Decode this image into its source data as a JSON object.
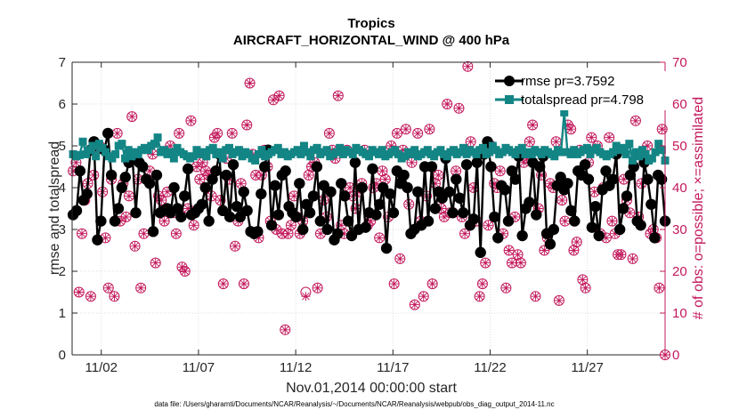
{
  "chart_data": {
    "type": "line",
    "title": "Tropics",
    "subtitle": "AIRCRAFT_HORIZONTAL_WIND @ 400 hPa",
    "xlabel": "Nov.01,2014 00:00:00 start",
    "ylabel": "rmse and totalspread",
    "y2label": "# of obs: o=possible; ×=assimilated",
    "footnote": "data file: /Users/gharamti/Documents/NCAR/Reanalysis/~/Documents/NCAR/Reanalysis/webpub/obs_diag_output_2014-11.nc",
    "xlim": [
      0.5,
      31.0
    ],
    "ylim": [
      0,
      7
    ],
    "y2lim": [
      0,
      70
    ],
    "xticks": [
      {
        "value": 2,
        "label": "11/02"
      },
      {
        "value": 7,
        "label": "11/07"
      },
      {
        "value": 12,
        "label": "11/12"
      },
      {
        "value": 17,
        "label": "11/17"
      },
      {
        "value": 22,
        "label": "11/22"
      },
      {
        "value": 27,
        "label": "11/27"
      }
    ],
    "yticks": [
      "0",
      "1",
      "2",
      "3",
      "4",
      "5",
      "6",
      "7"
    ],
    "y2ticks": [
      "0",
      "10",
      "20",
      "30",
      "40",
      "50",
      "60",
      "70"
    ],
    "legend_position": "top-right",
    "colors": {
      "rmse": "#000000",
      "spread": "#138585",
      "obs": "#c2185b"
    },
    "series": [
      {
        "name": "rmse",
        "legend": "rmse pr=3.7592",
        "values": [
          3.35,
          3.45,
          4.4,
          3.7,
          3.85,
          4.9,
          5.1,
          2.75,
          3.2,
          4.9,
          5.3,
          4.3,
          3.2,
          3.5,
          4.0,
          4.25,
          4.6,
          4.8,
          3.4,
          4.6,
          4.5,
          4.2,
          4.1,
          2.95,
          4.3,
          3.4,
          3.45,
          3.5,
          3.4,
          4.0,
          3.5,
          3.3,
          3.8,
          4.45,
          3.35,
          3.4,
          3.5,
          3.6,
          4.0,
          3.2,
          4.2,
          4.4,
          4.8,
          3.45,
          4.3,
          3.3,
          4.55,
          3.55,
          3.3,
          3.9,
          3.45,
          2.95,
          2.9,
          2.95,
          3.85,
          4.5,
          4.9,
          3.1,
          4.05,
          3.35,
          4.3,
          4.4,
          3.55,
          3.4,
          3.3,
          4.1,
          3.0,
          3.6,
          3.4,
          3.8,
          4.5,
          3.2,
          4.05,
          3.0,
          3.9,
          2.75,
          2.9,
          4.1,
          3.8,
          3.2,
          2.85,
          4.6,
          3.0,
          4.0,
          3.05,
          3.4,
          4.45,
          3.35,
          3.6,
          4.0,
          2.55,
          3.85,
          3.4,
          4.4,
          4.1,
          4.3,
          4.0,
          2.9,
          3.0,
          3.9,
          3.1,
          4.5,
          3.2,
          4.5,
          3.5,
          3.9,
          3.75,
          4.7,
          3.9,
          3.4,
          4.2,
          3.75,
          3.4,
          4.55,
          3.1,
          3.25,
          4.6,
          2.45,
          4.8,
          5.1,
          4.5,
          3.3,
          2.8,
          4.05,
          3.95,
          3.2,
          4.4,
          4.2,
          4.75,
          2.85,
          3.5,
          3.65,
          4.6,
          3.35,
          4.5,
          4.75,
          2.9,
          2.65,
          3.0,
          4.05,
          4.25,
          3.95,
          4.1,
          3.45,
          3.2,
          4.4,
          4.3,
          4.55,
          4.2,
          3.05,
          3.55,
          2.85,
          3.95,
          4.4,
          4.05,
          4.2,
          4.8,
          3.0,
          3.5,
          3.8,
          4.3,
          4.5,
          3.2,
          3.1,
          4.6,
          4.2,
          3.6,
          2.8,
          4.3,
          4.2,
          3.2
        ]
      },
      {
        "name": "totalspread",
        "legend": "totalspread pr=4.798",
        "values": [
          4.8,
          4.75,
          4.78,
          5.1,
          4.8,
          4.9,
          5.0,
          4.75,
          5.05,
          4.95,
          4.85,
          4.75,
          4.7,
          4.8,
          5.0,
          5.05,
          4.7,
          4.9,
          4.75,
          4.85,
          4.8,
          4.9,
          4.95,
          4.9,
          5.0,
          5.05,
          5.2,
          4.85,
          4.9,
          4.8,
          4.85,
          4.7,
          4.95,
          4.85,
          4.8,
          4.75,
          4.7,
          4.75,
          4.9,
          4.8,
          4.85,
          4.75,
          4.9,
          4.95,
          4.8,
          4.85,
          4.7,
          4.9,
          4.95,
          4.8,
          4.85,
          4.9,
          4.75,
          4.85,
          4.8,
          4.7,
          4.65,
          4.8,
          4.9,
          4.75,
          4.8,
          4.85,
          4.9,
          4.95,
          4.8,
          4.85,
          4.75,
          4.8,
          4.85,
          4.9,
          4.8,
          5.0,
          4.85,
          4.75,
          4.9,
          4.95,
          4.8,
          4.85,
          4.9,
          4.75,
          4.8,
          4.85,
          4.95,
          4.8,
          4.9,
          4.85,
          4.8,
          4.95,
          4.9,
          4.85,
          4.8,
          4.75,
          4.9,
          4.85,
          4.8,
          4.9,
          4.75,
          4.8,
          4.85,
          4.9,
          4.8,
          4.7,
          4.75,
          4.85,
          4.8,
          4.9,
          4.75,
          4.8,
          4.85,
          4.9,
          4.8,
          4.75,
          4.85,
          4.9,
          4.8,
          4.75,
          4.85,
          4.9,
          4.8,
          4.85,
          4.95,
          4.8,
          4.9,
          4.85,
          4.8,
          4.9,
          4.95,
          4.8,
          4.85,
          5.0,
          4.9,
          4.8,
          4.85,
          4.95,
          4.9,
          4.85,
          4.8,
          4.9,
          4.95,
          4.8,
          4.85,
          4.8,
          4.9,
          4.85,
          4.8,
          4.9,
          4.85,
          4.8,
          4.75,
          4.9,
          4.85,
          5.8,
          4.85,
          4.8,
          4.9,
          4.8,
          4.85,
          4.9,
          4.95,
          4.8,
          4.9,
          4.95,
          4.85,
          4.8,
          4.75,
          4.8,
          4.85,
          5.0,
          4.9,
          4.95,
          4.8,
          5.05,
          4.65,
          4.85,
          4.75,
          4.9,
          4.8,
          4.65,
          4.7,
          4.85,
          5.05,
          4.9,
          4.65
        ]
      }
    ],
    "obs_possible": [
      44,
      46,
      15,
      29,
      37,
      41,
      14,
      43,
      49,
      50,
      39,
      28,
      16,
      42,
      14,
      53,
      32,
      41,
      33,
      38,
      57,
      26,
      42,
      16,
      29,
      42,
      44,
      48,
      22,
      38,
      37,
      32,
      39,
      50,
      34,
      29,
      53,
      21,
      20,
      35,
      56,
      31,
      45,
      42,
      46,
      44,
      43,
      38,
      52,
      53,
      37,
      17,
      47,
      42,
      53,
      26,
      32,
      41,
      17,
      55,
      65,
      48,
      43,
      28,
      43,
      49,
      45,
      32,
      61,
      30,
      62,
      29,
      6,
      29,
      31,
      38,
      33,
      29,
      32,
      15,
      43,
      45,
      46,
      16,
      29,
      37,
      33,
      53,
      49,
      47,
      62,
      31,
      29,
      49,
      40,
      38,
      35,
      39,
      41,
      49,
      31,
      32,
      40,
      41,
      28,
      44,
      42,
      33,
      50,
      17,
      53,
      23,
      49,
      54,
      36,
      46,
      12,
      53,
      32,
      14,
      38,
      54,
      17,
      41,
      43,
      35,
      33,
      60,
      34,
      34,
      44,
      59,
      33,
      29,
      69,
      51,
      40,
      32,
      14,
      17,
      22,
      31,
      50,
      41,
      40,
      44,
      29,
      16,
      25,
      22,
      33,
      24,
      22,
      46,
      47,
      51,
      55,
      14,
      35,
      43,
      25,
      28,
      41,
      40,
      51,
      13,
      37,
      32,
      55,
      54,
      25,
      27,
      49,
      18,
      16,
      46,
      52,
      39,
      50,
      29,
      40,
      28,
      52,
      32,
      29,
      24,
      24,
      42,
      37,
      34,
      23,
      56,
      33,
      41,
      61,
      50,
      29,
      30,
      28,
      16,
      54,
      0
    ],
    "obs_assimilated": [
      44,
      46,
      15,
      29,
      37,
      41,
      14,
      43,
      49,
      50,
      39,
      28,
      16,
      42,
      14,
      53,
      32,
      41,
      33,
      38,
      57,
      26,
      42,
      16,
      29,
      42,
      44,
      48,
      22,
      38,
      37,
      32,
      39,
      50,
      34,
      29,
      53,
      21,
      20,
      35,
      56,
      31,
      45,
      42,
      46,
      44,
      43,
      38,
      52,
      53,
      37,
      17,
      47,
      42,
      53,
      26,
      32,
      41,
      17,
      55,
      65,
      48,
      43,
      28,
      43,
      49,
      45,
      32,
      61,
      30,
      62,
      29,
      6,
      29,
      31,
      38,
      33,
      29,
      32,
      14,
      43,
      45,
      46,
      16,
      29,
      37,
      33,
      53,
      49,
      47,
      62,
      31,
      29,
      49,
      40,
      38,
      35,
      39,
      41,
      49,
      31,
      32,
      40,
      41,
      28,
      44,
      42,
      33,
      50,
      17,
      53,
      23,
      49,
      54,
      36,
      46,
      12,
      53,
      32,
      14,
      38,
      54,
      17,
      41,
      43,
      35,
      33,
      60,
      34,
      34,
      44,
      59,
      33,
      29,
      69,
      51,
      40,
      32,
      14,
      17,
      22,
      31,
      50,
      41,
      40,
      44,
      29,
      16,
      25,
      22,
      33,
      24,
      22,
      46,
      47,
      51,
      55,
      14,
      35,
      43,
      25,
      28,
      41,
      40,
      51,
      13,
      37,
      32,
      55,
      54,
      25,
      27,
      49,
      18,
      16,
      46,
      52,
      39,
      50,
      29,
      40,
      28,
      52,
      32,
      29,
      24,
      24,
      42,
      37,
      34,
      23,
      56,
      33,
      41,
      61,
      50,
      29,
      30,
      28,
      16,
      54,
      0
    ]
  }
}
